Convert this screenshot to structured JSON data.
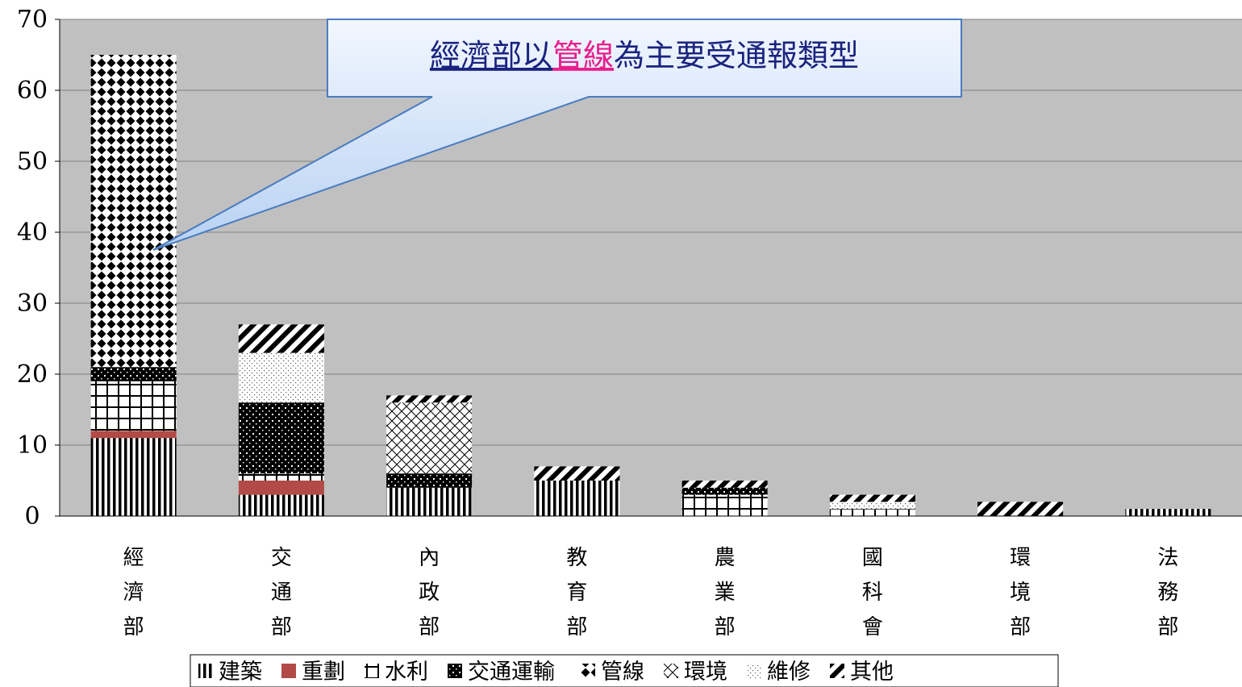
{
  "chart_data": {
    "type": "bar",
    "stacked": true,
    "categories": [
      "經濟部",
      "交通部",
      "內政部",
      "教育部",
      "農業部",
      "國科會",
      "環境部",
      "法務部"
    ],
    "ylim": [
      0,
      70
    ],
    "yticks": [
      0,
      10,
      20,
      30,
      40,
      50,
      60,
      70
    ],
    "grid": true,
    "legend_position": "bottom",
    "series": [
      {
        "name": "建築",
        "values": [
          11,
          3,
          4,
          5,
          0,
          0,
          0,
          1
        ]
      },
      {
        "name": "重劃",
        "values": [
          1,
          2,
          0,
          0,
          0,
          0,
          0,
          0
        ]
      },
      {
        "name": "水利",
        "values": [
          7,
          1,
          0,
          0,
          3,
          1,
          0,
          0
        ]
      },
      {
        "name": "交通運輸",
        "values": [
          2,
          10,
          2,
          0,
          1,
          0,
          0,
          0
        ]
      },
      {
        "name": "管線",
        "values": [
          44,
          0,
          0,
          0,
          0,
          0,
          0,
          0
        ]
      },
      {
        "name": "環境",
        "values": [
          0,
          0,
          10,
          0,
          0,
          0,
          0,
          0
        ]
      },
      {
        "name": "維修",
        "values": [
          0,
          7,
          0,
          0,
          0,
          1,
          0,
          0
        ]
      },
      {
        "name": "其他",
        "values": [
          0,
          4,
          1,
          2,
          1,
          1,
          2,
          0
        ]
      }
    ],
    "annotation": {
      "text_part1": "經濟部以",
      "text_highlight": "管線",
      "text_part2": "為主要受通報類型",
      "text_color": "#1a237e",
      "highlight_color": "#e91e8c"
    }
  },
  "colors": {
    "plot_bg": "#c0c0c0",
    "grid": "#808080",
    "redevelop": "#b24a47",
    "callout_top": "#f2f7ff",
    "callout_bottom": "#b7d1f2",
    "callout_border": "#4a7cc0"
  }
}
